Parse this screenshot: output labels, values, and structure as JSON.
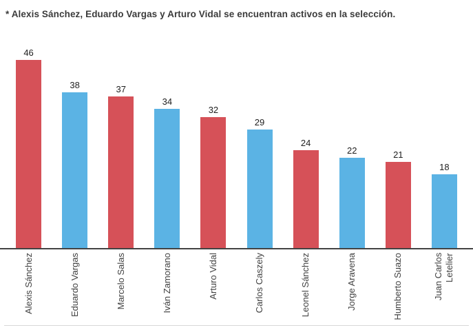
{
  "note": "* Alexis Sánchez, Eduardo Vargas y Arturo Vidal se encuentran activos en la selección.",
  "colors": {
    "red": "#D65158",
    "blue": "#5BB3E4",
    "axis": "#424242",
    "value_text": "#1E1E1E",
    "category_text": "#424242",
    "note_text": "#3B3B3B",
    "divider": "#D8D8D8",
    "background": "#FFFFFF"
  },
  "chart_data": {
    "type": "bar",
    "title": "* Alexis Sánchez, Eduardo Vargas y Arturo Vidal se encuentran activos en la selección.",
    "categories": [
      "Alexis Sánchez",
      "Eduardo Vargas",
      "Marcelo Salas",
      "Iván Zamorano",
      "Arturo Vidal",
      "Carlos Caszely",
      "Leonel Sánchez",
      "Jorge Aravena",
      "Humberto Suazo",
      "Juan Carlos Letelier"
    ],
    "values": [
      46,
      38,
      37,
      34,
      32,
      29,
      24,
      22,
      21,
      18
    ],
    "bar_colors": [
      "#D65158",
      "#5BB3E4",
      "#D65158",
      "#5BB3E4",
      "#D65158",
      "#5BB3E4",
      "#D65158",
      "#5BB3E4",
      "#D65158",
      "#5BB3E4"
    ],
    "xlabel": "",
    "ylabel": "",
    "ylim": [
      0,
      46
    ],
    "value_labels": true,
    "category_labels_rotated": true,
    "legend": "none",
    "grid": false,
    "orientation": "vertical"
  }
}
